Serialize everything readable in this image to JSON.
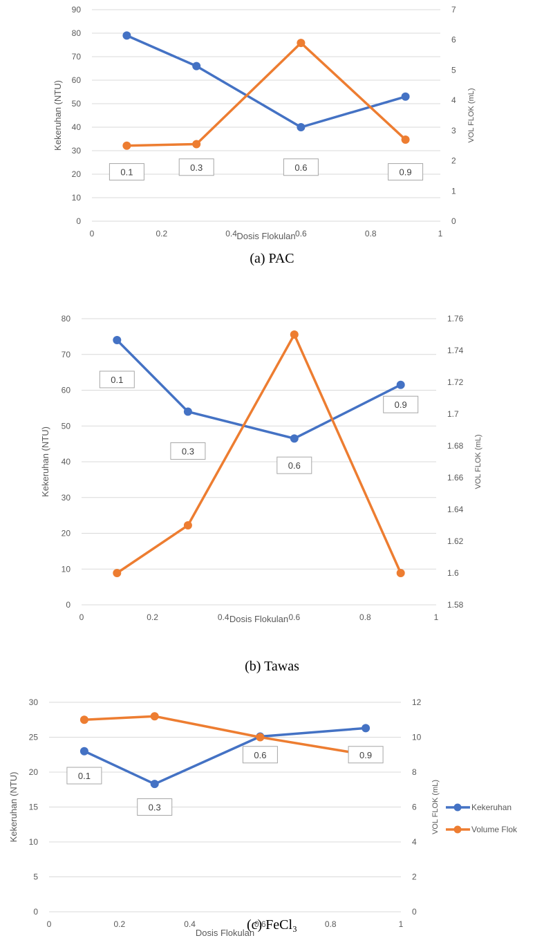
{
  "colors": {
    "kekeruhan": "#4472C4",
    "volume": "#ED7D31",
    "grid": "#D9D9D9"
  },
  "legend": {
    "kekeruhan": "Kekeruhan",
    "volume": "Volume Flok"
  },
  "chart_data": [
    {
      "type": "line",
      "caption": "(a) PAC",
      "xlabel": "Dosis Flokulan",
      "ylabel": "Kekeruhan (NTU)",
      "y2label": "VOL FLOK (mL)",
      "xlim": [
        0,
        1
      ],
      "x_ticks": [
        "0",
        "0.2",
        "0.4",
        "0.6",
        "0.8",
        "1"
      ],
      "ylim": [
        0,
        90
      ],
      "y_ticks": [
        "0",
        "10",
        "20",
        "30",
        "40",
        "50",
        "60",
        "70",
        "80",
        "90"
      ],
      "y2lim": [
        0,
        7
      ],
      "y2_ticks": [
        "0",
        "1",
        "2",
        "3",
        "4",
        "5",
        "6",
        "7"
      ],
      "grid": true,
      "x": [
        0.1,
        0.3,
        0.6,
        0.9
      ],
      "series": [
        {
          "name": "Kekeruhan",
          "axis": "left",
          "values": [
            79,
            66,
            40,
            53
          ]
        },
        {
          "name": "Volume Flok",
          "axis": "right",
          "values": [
            2.5,
            2.55,
            5.9,
            2.7
          ]
        }
      ],
      "annotations": [
        {
          "text": "0.1",
          "x": 0.1,
          "y": 21
        },
        {
          "text": "0.3",
          "x": 0.3,
          "y": 23
        },
        {
          "text": "0.6",
          "x": 0.6,
          "y": 23
        },
        {
          "text": "0.9",
          "x": 0.9,
          "y": 21
        }
      ]
    },
    {
      "type": "line",
      "caption": "(b) Tawas",
      "xlabel": "Dosis Flokulan",
      "ylabel": "Kekeruhan (NTU)",
      "y2label": "VOL FLOK (mL)",
      "xlim": [
        0,
        1
      ],
      "x_ticks": [
        "0",
        "0.2",
        "0.4",
        "0.6",
        "0.8",
        "1"
      ],
      "ylim": [
        0,
        80
      ],
      "y_ticks": [
        "0",
        "10",
        "20",
        "30",
        "40",
        "50",
        "60",
        "70",
        "80"
      ],
      "y2lim": [
        1.58,
        1.76
      ],
      "y2_ticks": [
        "1.58",
        "1.6",
        "1.62",
        "1.64",
        "1.66",
        "1.68",
        "1.7",
        "1.72",
        "1.74",
        "1.76"
      ],
      "grid": true,
      "x": [
        0.1,
        0.3,
        0.6,
        0.9
      ],
      "series": [
        {
          "name": "Kekeruhan",
          "axis": "left",
          "values": [
            74,
            54,
            46.5,
            61.5
          ]
        },
        {
          "name": "Volume Flok",
          "axis": "right",
          "values": [
            1.6,
            1.63,
            1.75,
            1.6
          ]
        }
      ],
      "annotations": [
        {
          "text": "0.1",
          "x": 0.1,
          "y": 63
        },
        {
          "text": "0.3",
          "x": 0.3,
          "y": 43
        },
        {
          "text": "0.6",
          "x": 0.6,
          "y": 39
        },
        {
          "text": "0.9",
          "x": 0.9,
          "y": 56
        }
      ]
    },
    {
      "type": "line",
      "caption": "(c) FeCl₃",
      "xlabel": "Dosis Flokulan",
      "ylabel": "Kekeruhan (NTU)",
      "y2label": "VOL FLOK (mL)",
      "xlim": [
        0,
        1
      ],
      "x_ticks": [
        "0",
        "0.2",
        "0.4",
        "0.6",
        "0.8",
        "1"
      ],
      "ylim": [
        0,
        30
      ],
      "y_ticks": [
        "0",
        "5",
        "10",
        "15",
        "20",
        "25",
        "30"
      ],
      "y2lim": [
        0,
        12
      ],
      "y2_ticks": [
        "0",
        "2",
        "4",
        "6",
        "8",
        "10",
        "12"
      ],
      "grid": true,
      "legend_position": "right",
      "x": [
        0.1,
        0.3,
        0.6,
        0.9
      ],
      "series": [
        {
          "name": "Kekeruhan",
          "axis": "left",
          "values": [
            23,
            18.3,
            25.1,
            26.3
          ]
        },
        {
          "name": "Volume Flok",
          "axis": "right",
          "values": [
            11,
            11.2,
            10,
            9
          ]
        }
      ],
      "annotations": [
        {
          "text": "0.1",
          "x": 0.1,
          "y": 19.5
        },
        {
          "text": "0.3",
          "x": 0.3,
          "y": 15
        },
        {
          "text": "0.6",
          "x": 0.6,
          "y": 22.5
        },
        {
          "text": "0.9",
          "x": 0.9,
          "y": 22.5
        }
      ]
    }
  ]
}
